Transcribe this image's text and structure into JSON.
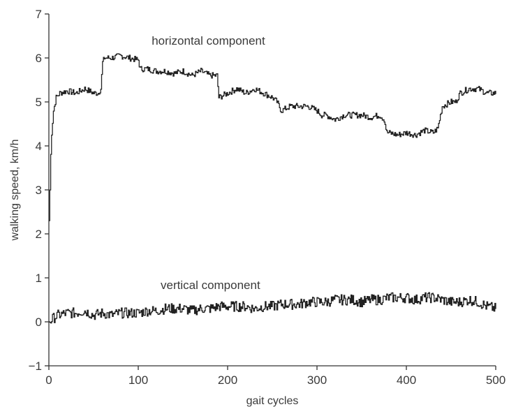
{
  "chart_data": {
    "type": "line",
    "title": "",
    "xlabel": "gait cycles",
    "ylabel": "walking speed, km/h",
    "xlim": [
      0,
      500
    ],
    "ylim": [
      -1,
      7
    ],
    "xticks": [
      0,
      100,
      200,
      300,
      400,
      500
    ],
    "yticks": [
      -1,
      0,
      1,
      2,
      3,
      4,
      5,
      6,
      7
    ],
    "grid": false,
    "legend": "none",
    "line_color": "#222222",
    "annotations": [
      {
        "text": "horizontal component",
        "x": 115,
        "y": 6.3
      },
      {
        "text": "vertical component",
        "x": 125,
        "y": 0.75
      }
    ],
    "series": [
      {
        "name": "horizontal component",
        "x": [
          0,
          1,
          2,
          3,
          5,
          8,
          12,
          20,
          30,
          40,
          50,
          55,
          58,
          60,
          62,
          70,
          80,
          90,
          100,
          102,
          110,
          120,
          130,
          140,
          150,
          160,
          170,
          180,
          188,
          190,
          200,
          210,
          220,
          230,
          240,
          250,
          255,
          260,
          270,
          280,
          290,
          300,
          305,
          310,
          320,
          330,
          340,
          350,
          360,
          370,
          375,
          378,
          380,
          390,
          400,
          410,
          420,
          430,
          435,
          440,
          450,
          455,
          460,
          470,
          480,
          490,
          500
        ],
        "y": [
          2.3,
          3.0,
          3.8,
          4.3,
          4.8,
          5.1,
          5.2,
          5.25,
          5.2,
          5.3,
          5.2,
          5.2,
          5.3,
          5.9,
          6.0,
          6.0,
          6.05,
          6.0,
          5.95,
          5.75,
          5.75,
          5.7,
          5.7,
          5.65,
          5.7,
          5.6,
          5.7,
          5.6,
          5.6,
          5.1,
          5.2,
          5.3,
          5.2,
          5.3,
          5.2,
          5.1,
          5.0,
          4.8,
          4.9,
          4.9,
          4.9,
          4.8,
          4.7,
          4.7,
          4.6,
          4.7,
          4.7,
          4.7,
          4.65,
          4.7,
          4.6,
          4.3,
          4.3,
          4.25,
          4.3,
          4.25,
          4.35,
          4.3,
          4.4,
          4.9,
          5.0,
          5.0,
          5.2,
          5.3,
          5.3,
          5.2,
          5.2
        ]
      },
      {
        "name": "vertical component",
        "x": [
          0,
          3,
          6,
          10,
          20,
          30,
          40,
          50,
          60,
          70,
          80,
          90,
          100,
          110,
          120,
          130,
          140,
          150,
          160,
          170,
          180,
          190,
          200,
          210,
          220,
          230,
          240,
          250,
          260,
          270,
          280,
          290,
          300,
          310,
          320,
          330,
          340,
          350,
          360,
          370,
          380,
          390,
          400,
          410,
          420,
          430,
          440,
          450,
          460,
          470,
          480,
          490,
          500
        ],
        "y": [
          0.0,
          0.05,
          0.1,
          0.15,
          0.2,
          0.2,
          0.25,
          0.15,
          0.2,
          0.15,
          0.2,
          0.2,
          0.2,
          0.25,
          0.25,
          0.3,
          0.3,
          0.3,
          0.25,
          0.3,
          0.3,
          0.35,
          0.35,
          0.35,
          0.35,
          0.3,
          0.35,
          0.35,
          0.4,
          0.4,
          0.4,
          0.45,
          0.45,
          0.45,
          0.5,
          0.5,
          0.5,
          0.45,
          0.5,
          0.5,
          0.55,
          0.55,
          0.55,
          0.5,
          0.55,
          0.55,
          0.5,
          0.45,
          0.45,
          0.5,
          0.45,
          0.35,
          0.3
        ]
      }
    ]
  }
}
